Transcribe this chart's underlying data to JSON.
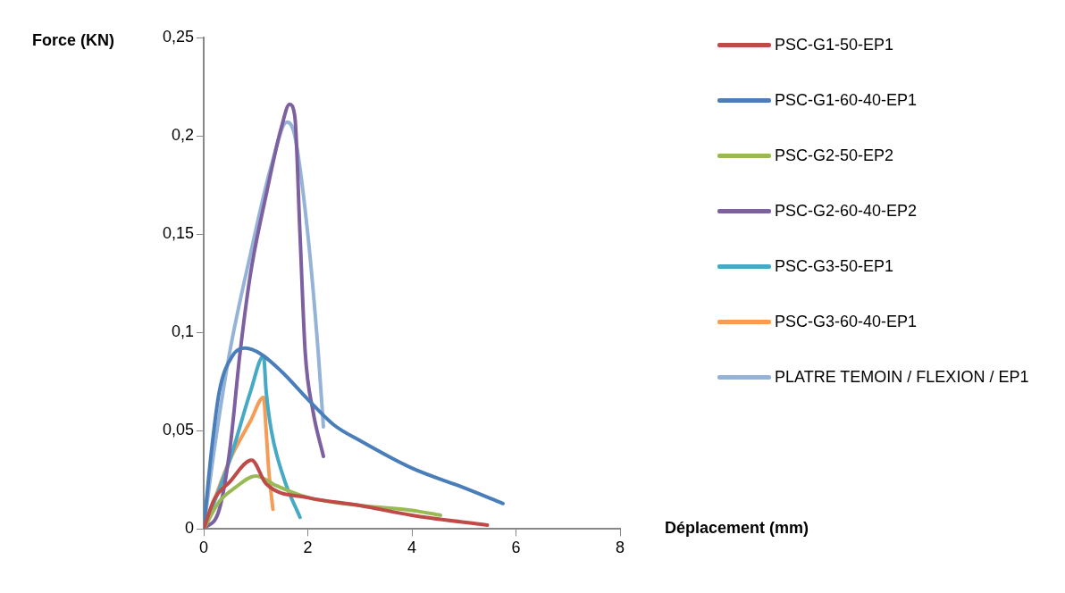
{
  "chart_data": {
    "type": "line",
    "xlabel": "Déplacement (mm)",
    "ylabel": "Force (KN)",
    "xlim": [
      0,
      8
    ],
    "xticks": [
      0,
      2,
      4,
      6,
      8
    ],
    "ylim": [
      0,
      0.25
    ],
    "yticks": [
      {
        "value": 0,
        "label": "0"
      },
      {
        "value": 0.05,
        "label": "0,05"
      },
      {
        "value": 0.1,
        "label": "0,1"
      },
      {
        "value": 0.15,
        "label": "0,15"
      },
      {
        "value": 0.2,
        "label": "0,2"
      },
      {
        "value": 0.25,
        "label": "0,25"
      }
    ],
    "grid": false,
    "legend": "right",
    "marker": "none",
    "line_style": "solid",
    "series": [
      {
        "name": "PSC-G1-50-EP1",
        "color": "#be4b48",
        "x": [
          0,
          0.2,
          0.5,
          0.92,
          1.2,
          2,
          3,
          4,
          5.45
        ],
        "values": [
          0,
          0.015,
          0.024,
          0.035,
          0.023,
          0.016,
          0.012,
          0.007,
          0.002
        ]
      },
      {
        "name": "PSC-G1-60-40-EP1",
        "color": "#4a7ebb",
        "x": [
          0,
          0.15,
          0.3,
          0.55,
          0.8,
          1.1,
          1.5,
          2,
          2.5,
          3,
          4,
          5,
          5.75
        ],
        "values": [
          0,
          0.04,
          0.07,
          0.088,
          0.092,
          0.089,
          0.08,
          0.066,
          0.053,
          0.045,
          0.031,
          0.021,
          0.013
        ]
      },
      {
        "name": "PSC-G2-50-EP2",
        "color": "#98b954",
        "x": [
          0,
          0.3,
          0.6,
          1.0,
          1.4,
          2,
          3,
          4,
          4.55
        ],
        "values": [
          0,
          0.014,
          0.021,
          0.027,
          0.022,
          0.016,
          0.012,
          0.0095,
          0.007
        ]
      },
      {
        "name": "PSC-G2-60-40-EP2",
        "color": "#7d60a0",
        "x": [
          0,
          0.3,
          0.5,
          0.7,
          0.9,
          1.2,
          1.5,
          1.65,
          1.75,
          1.85,
          1.95,
          2.1,
          2.3
        ],
        "values": [
          0,
          0.01,
          0.04,
          0.09,
          0.13,
          0.17,
          0.205,
          0.216,
          0.21,
          0.15,
          0.09,
          0.06,
          0.037
        ]
      },
      {
        "name": "PSC-G3-50-EP1",
        "color": "#46aac5",
        "x": [
          0,
          0.5,
          0.9,
          1.15,
          1.2,
          1.3,
          1.55,
          1.85
        ],
        "values": [
          0,
          0.035,
          0.07,
          0.088,
          0.07,
          0.05,
          0.025,
          0.006
        ]
      },
      {
        "name": "PSC-G3-60-40-EP1",
        "color": "#f59d56",
        "x": [
          0,
          0.5,
          0.9,
          1.15,
          1.2,
          1.25,
          1.33
        ],
        "values": [
          0,
          0.035,
          0.055,
          0.067,
          0.05,
          0.03,
          0.01
        ]
      },
      {
        "name": "PLATRE TEMOIN / FLEXION / EP1",
        "color": "#95b3d7",
        "x": [
          0,
          0.2,
          0.5,
          0.9,
          1.3,
          1.6,
          1.75,
          2,
          2.2,
          2.3
        ],
        "values": [
          0,
          0.04,
          0.09,
          0.14,
          0.185,
          0.207,
          0.2,
          0.15,
          0.09,
          0.052
        ]
      }
    ]
  }
}
